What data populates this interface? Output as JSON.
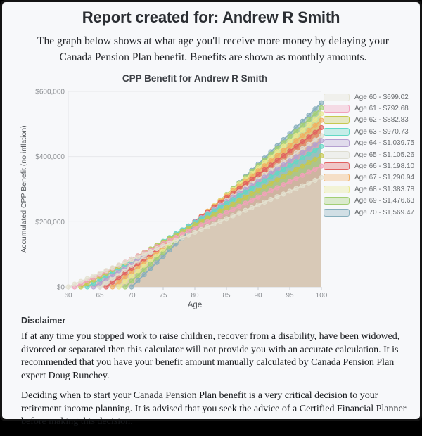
{
  "page": {
    "title": "Report created for: Andrew R Smith",
    "subtitle": "The graph below shows at what age you'll receive more money by delaying your Canada Pension Plan benefit. Benefits are shown as monthly amounts."
  },
  "chart_data": {
    "type": "area",
    "title": "CPP Benefit for Andrew R Smith",
    "xlabel": "Age",
    "ylabel": "Accumulated CPP Benefit (no inflation)",
    "x_range": [
      60,
      100
    ],
    "y_range": [
      0,
      600000
    ],
    "x_ticks": [
      60,
      65,
      70,
      75,
      80,
      85,
      90,
      95,
      100
    ],
    "y_ticks": [
      {
        "value": 0,
        "label": "$0"
      },
      {
        "value": 200000,
        "label": "$200,000"
      },
      {
        "value": 400000,
        "label": "$400,000"
      },
      {
        "value": 600000,
        "label": "$600,000"
      }
    ],
    "grid": true,
    "legend_position": "right",
    "series_rule": "accumulated_value(age) = monthly_benefit * 12 * (age - claim_age), plotted at yearly points from claim_age to age 100",
    "series": [
      {
        "label": "Age 60 - $699.02",
        "claim_age": 60,
        "monthly_benefit": 699.02,
        "value_at_age_100": 335529.6,
        "color": "#e4e2d0"
      },
      {
        "label": "Age 61 - $792.68",
        "claim_age": 61,
        "monthly_benefit": 792.68,
        "value_at_age_100": 370974.24,
        "color": "#f2a1bb"
      },
      {
        "label": "Age 62 - $882.83",
        "claim_age": 62,
        "monthly_benefit": 882.83,
        "value_at_age_100": 402570.48,
        "color": "#c6c84f"
      },
      {
        "label": "Age 63 - $970.73",
        "claim_age": 63,
        "monthly_benefit": 970.73,
        "value_at_age_100": 431004.12,
        "color": "#62d9c5"
      },
      {
        "label": "Age 64 - $1,039.75",
        "claim_age": 64,
        "monthly_benefit": 1039.75,
        "value_at_age_100": 449172.0,
        "color": "#b4a0d0"
      },
      {
        "label": "Age 65 - $1,105.26",
        "claim_age": 65,
        "monthly_benefit": 1105.26,
        "value_at_age_100": 464209.2,
        "color": "#deddd1"
      },
      {
        "label": "Age 66 - $1,198.10",
        "claim_age": 66,
        "monthly_benefit": 1198.1,
        "value_at_age_100": 488824.8,
        "color": "#e26060"
      },
      {
        "label": "Age 67 - $1,290.94",
        "claim_age": 67,
        "monthly_benefit": 1290.94,
        "value_at_age_100": 511212.24,
        "color": "#f2ae60"
      },
      {
        "label": "Age 68 - $1,383.78",
        "claim_age": 68,
        "monthly_benefit": 1383.78,
        "value_at_age_100": 531371.52,
        "color": "#e9e98e"
      },
      {
        "label": "Age 69 - $1,476.63",
        "claim_age": 69,
        "monthly_benefit": 1476.63,
        "value_at_age_100": 549306.36,
        "color": "#a2ce74"
      },
      {
        "label": "Age 70 - $1,569.47",
        "claim_age": 70,
        "monthly_benefit": 1569.47,
        "value_at_age_100": 565009.2,
        "color": "#86aebc"
      }
    ]
  },
  "disclaimer": {
    "heading": "Disclaimer",
    "paragraphs": [
      "If at any time you stopped work to raise children, recover from a disability, have been widowed, divorced or separated then this calculator will not provide you with an accurate calculation. It is recommended that you have your benefit amount manually calculated by Canada Pension Plan expert Doug Runchey.",
      "Deciding when to start your Canada Pension Plan benefit is a very critical decision to your retirement income planning. It is advised that you seek the advice of a Certified Financial Planner before making this decision."
    ]
  }
}
